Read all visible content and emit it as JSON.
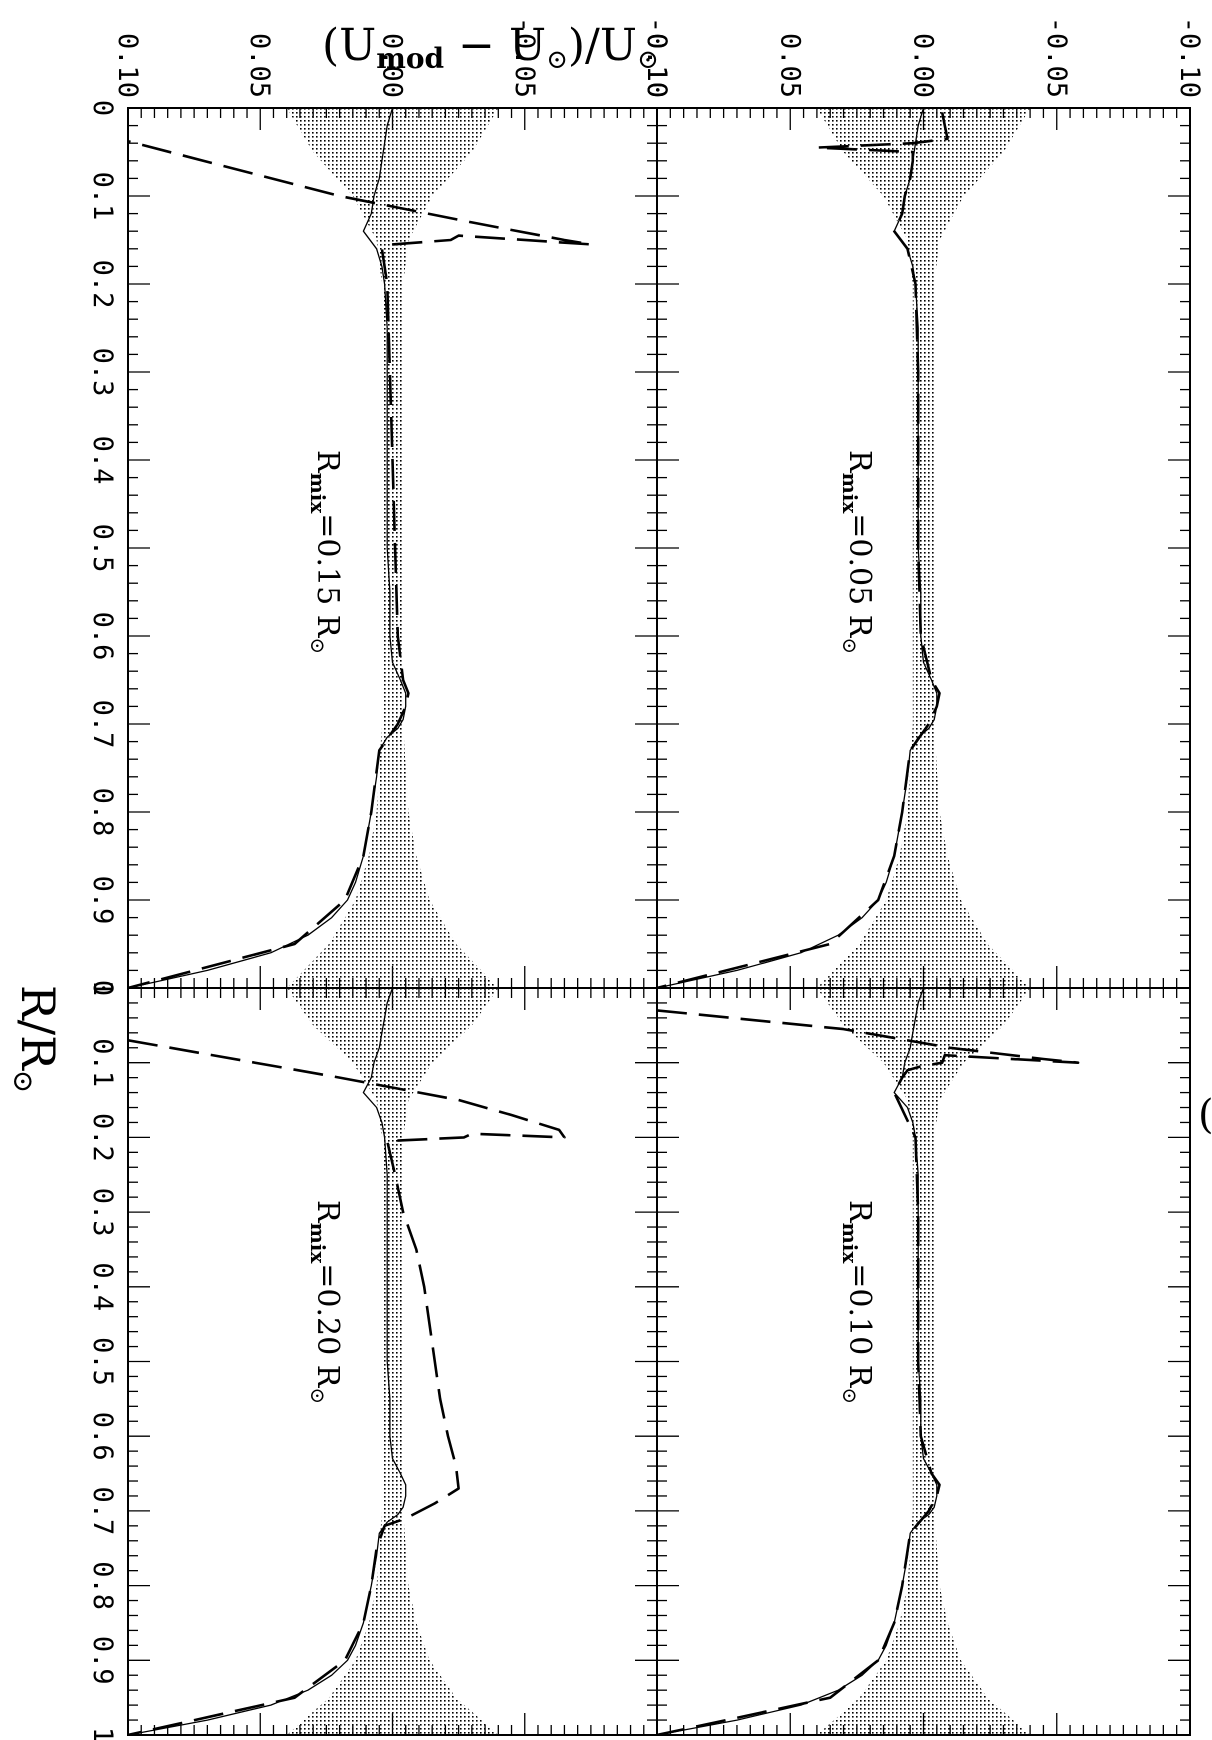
{
  "figure": {
    "y_title": {
      "open": "(U",
      "sub1": "mod",
      "mid": " − U",
      "sun1": "⊙",
      "close": ")/U",
      "sun2": "⊙"
    },
    "x_title": {
      "main": "R/R",
      "sun": "⊙"
    }
  },
  "chart_data": [
    {
      "type": "line",
      "panel_label": {
        "prefix": "R",
        "sub": "mix",
        "value": "=0.05 R",
        "sun": "⊙"
      },
      "xlim": [
        0,
        1
      ],
      "ylim": [
        -0.1,
        0.1
      ],
      "x_ticks": [
        "0",
        "0.1",
        "0.2",
        "0.3",
        "0.4",
        "0.5",
        "0.6",
        "0.7",
        "0.8",
        "0.9",
        "1"
      ],
      "y_ticks": [
        "-0.10",
        "-0.05",
        "0.00",
        "0.05",
        "0.10"
      ],
      "band": {
        "x": [
          0.0,
          0.05,
          0.1,
          0.15,
          0.2,
          0.25,
          0.3,
          0.4,
          0.5,
          0.6,
          0.65,
          0.7,
          0.75,
          0.8,
          0.85,
          0.9,
          0.95,
          1.0
        ],
        "half": [
          0.04,
          0.03,
          0.015,
          0.006,
          0.004,
          0.004,
          0.004,
          0.004,
          0.004,
          0.004,
          0.004,
          0.004,
          0.005,
          0.006,
          0.009,
          0.014,
          0.024,
          0.04
        ]
      },
      "series": [
        {
          "style": "solid",
          "x": [
            0.0,
            0.02,
            0.04,
            0.06,
            0.08,
            0.1,
            0.12,
            0.14,
            0.16,
            0.18,
            0.2,
            0.25,
            0.3,
            0.35,
            0.4,
            0.45,
            0.5,
            0.55,
            0.6,
            0.63,
            0.65,
            0.665,
            0.68,
            0.695,
            0.705,
            0.715,
            0.73,
            0.76,
            0.8,
            0.85,
            0.88,
            0.9,
            0.92,
            0.94,
            0.96,
            0.98,
            1.0
          ],
          "y": [
            0.0,
            0.002,
            0.003,
            0.004,
            0.005,
            0.007,
            0.008,
            0.011,
            0.006,
            0.004,
            0.003,
            0.002,
            0.002,
            0.002,
            0.002,
            0.002,
            0.002,
            0.001,
            0.001,
            0.0,
            -0.003,
            -0.005,
            -0.005,
            -0.004,
            -0.002,
            0.002,
            0.005,
            0.006,
            0.008,
            0.011,
            0.014,
            0.017,
            0.023,
            0.032,
            0.046,
            0.07,
            0.1
          ]
        },
        {
          "style": "dashed",
          "x": [
            0.005,
            0.02,
            0.035,
            0.04,
            0.045,
            0.05,
            0.06,
            0.08,
            0.1,
            0.12,
            0.14,
            0.16,
            0.2,
            0.3,
            0.4,
            0.5,
            0.6,
            0.65,
            0.665,
            0.68,
            0.7,
            0.73,
            0.8,
            0.85,
            0.9,
            0.95,
            1.0
          ],
          "y": [
            -0.007,
            -0.008,
            -0.009,
            0.004,
            0.04,
            0.004,
            0.004,
            0.005,
            0.007,
            0.008,
            0.011,
            0.006,
            0.003,
            0.002,
            0.002,
            0.002,
            0.001,
            -0.003,
            -0.006,
            -0.005,
            -0.002,
            0.005,
            0.008,
            0.011,
            0.017,
            0.035,
            0.1
          ]
        }
      ]
    },
    {
      "type": "line",
      "panel_label": {
        "prefix": "R",
        "sub": "mix",
        "value": "=0.10 R",
        "sun": "⊙"
      },
      "xlim": [
        0,
        1
      ],
      "ylim": [
        -0.1,
        0.1
      ],
      "x_ticks": [
        "0",
        "0.1",
        "0.2",
        "0.3",
        "0.4",
        "0.5",
        "0.6",
        "0.7",
        "0.8",
        "0.9",
        "1"
      ],
      "y_ticks": [
        "-0.10",
        "-0.05",
        "0.00",
        "0.05",
        "0.10"
      ],
      "band": {
        "x": [
          0.0,
          0.05,
          0.1,
          0.15,
          0.2,
          0.25,
          0.3,
          0.4,
          0.5,
          0.6,
          0.65,
          0.7,
          0.75,
          0.8,
          0.85,
          0.9,
          0.95,
          1.0
        ],
        "half": [
          0.04,
          0.03,
          0.015,
          0.006,
          0.004,
          0.004,
          0.004,
          0.004,
          0.004,
          0.004,
          0.004,
          0.004,
          0.005,
          0.006,
          0.009,
          0.014,
          0.024,
          0.04
        ]
      },
      "series": [
        {
          "style": "solid",
          "x": [
            0.0,
            0.02,
            0.04,
            0.06,
            0.08,
            0.1,
            0.12,
            0.14,
            0.16,
            0.18,
            0.2,
            0.25,
            0.3,
            0.35,
            0.4,
            0.45,
            0.5,
            0.55,
            0.6,
            0.63,
            0.65,
            0.665,
            0.68,
            0.695,
            0.705,
            0.715,
            0.73,
            0.76,
            0.8,
            0.85,
            0.88,
            0.9,
            0.92,
            0.94,
            0.96,
            0.98,
            1.0
          ],
          "y": [
            0.0,
            0.002,
            0.003,
            0.004,
            0.005,
            0.007,
            0.008,
            0.011,
            0.006,
            0.004,
            0.003,
            0.002,
            0.002,
            0.002,
            0.002,
            0.002,
            0.002,
            0.001,
            0.001,
            0.0,
            -0.003,
            -0.005,
            -0.005,
            -0.004,
            -0.002,
            0.002,
            0.005,
            0.006,
            0.008,
            0.011,
            0.014,
            0.017,
            0.023,
            0.032,
            0.046,
            0.07,
            0.1
          ]
        },
        {
          "style": "dashed",
          "x": [
            0.03,
            0.055,
            0.08,
            0.095,
            0.1,
            0.09,
            0.1,
            0.105,
            0.11,
            0.12,
            0.14,
            0.2,
            0.3,
            0.4,
            0.5,
            0.6,
            0.65,
            0.665,
            0.68,
            0.7,
            0.73,
            0.8,
            0.85,
            0.9,
            0.95,
            1.0
          ],
          "y": [
            0.1,
            0.03,
            -0.01,
            -0.045,
            -0.058,
            -0.008,
            -0.007,
            0.001,
            0.006,
            0.008,
            0.011,
            0.003,
            0.002,
            0.002,
            0.002,
            0.001,
            -0.003,
            -0.006,
            -0.005,
            -0.002,
            0.005,
            0.008,
            0.011,
            0.017,
            0.035,
            0.1
          ]
        }
      ]
    },
    {
      "type": "line",
      "panel_label": {
        "prefix": "R",
        "sub": "mix",
        "value": "=0.15 R",
        "sun": "⊙"
      },
      "xlim": [
        0,
        1
      ],
      "ylim": [
        -0.1,
        0.1
      ],
      "x_ticks": [
        "0",
        "0.1",
        "0.2",
        "0.3",
        "0.4",
        "0.5",
        "0.6",
        "0.7",
        "0.8",
        "0.9",
        "1"
      ],
      "y_ticks": [
        "-0.10",
        "-0.05",
        "0.00",
        "0.05",
        "0.10"
      ],
      "band": {
        "x": [
          0.0,
          0.05,
          0.1,
          0.15,
          0.2,
          0.25,
          0.3,
          0.4,
          0.5,
          0.6,
          0.65,
          0.7,
          0.75,
          0.8,
          0.85,
          0.9,
          0.95,
          1.0
        ],
        "half": [
          0.04,
          0.03,
          0.015,
          0.006,
          0.004,
          0.004,
          0.004,
          0.004,
          0.004,
          0.004,
          0.004,
          0.004,
          0.005,
          0.006,
          0.009,
          0.014,
          0.024,
          0.04
        ]
      },
      "series": [
        {
          "style": "solid",
          "x": [
            0.0,
            0.02,
            0.04,
            0.06,
            0.08,
            0.1,
            0.12,
            0.14,
            0.16,
            0.18,
            0.2,
            0.25,
            0.3,
            0.35,
            0.4,
            0.45,
            0.5,
            0.55,
            0.6,
            0.63,
            0.65,
            0.665,
            0.68,
            0.695,
            0.705,
            0.715,
            0.73,
            0.76,
            0.8,
            0.85,
            0.88,
            0.9,
            0.92,
            0.94,
            0.96,
            0.98,
            1.0
          ],
          "y": [
            0.0,
            0.002,
            0.003,
            0.004,
            0.005,
            0.007,
            0.008,
            0.011,
            0.006,
            0.004,
            0.003,
            0.002,
            0.002,
            0.002,
            0.002,
            0.002,
            0.002,
            0.001,
            0.001,
            0.0,
            -0.003,
            -0.005,
            -0.005,
            -0.004,
            -0.002,
            0.002,
            0.005,
            0.006,
            0.008,
            0.011,
            0.014,
            0.017,
            0.023,
            0.032,
            0.046,
            0.07,
            0.1
          ]
        },
        {
          "style": "dashed",
          "x": [
            0.03,
            0.1,
            0.13,
            0.15,
            0.155,
            0.145,
            0.15,
            0.155,
            0.16,
            0.2,
            0.3,
            0.4,
            0.5,
            0.6,
            0.65,
            0.665,
            0.68,
            0.7,
            0.73,
            0.8,
            0.85,
            0.9,
            0.95,
            1.0
          ],
          "y": [
            0.11,
            0.02,
            -0.03,
            -0.065,
            -0.075,
            -0.025,
            -0.022,
            0.0,
            0.004,
            0.002,
            0.001,
            0.0,
            -0.001,
            -0.002,
            -0.004,
            -0.006,
            -0.005,
            -0.002,
            0.005,
            0.008,
            0.011,
            0.018,
            0.037,
            0.1
          ]
        }
      ]
    },
    {
      "type": "line",
      "panel_label": {
        "prefix": "R",
        "sub": "mix",
        "value": "=0.20 R",
        "sun": "⊙"
      },
      "xlim": [
        0,
        1
      ],
      "ylim": [
        -0.1,
        0.1
      ],
      "x_ticks": [
        "0",
        "0.1",
        "0.2",
        "0.3",
        "0.4",
        "0.5",
        "0.6",
        "0.7",
        "0.8",
        "0.9",
        "1"
      ],
      "y_ticks": [
        "-0.10",
        "-0.05",
        "0.00",
        "0.05",
        "0.10"
      ],
      "band": {
        "x": [
          0.0,
          0.05,
          0.1,
          0.15,
          0.2,
          0.25,
          0.3,
          0.4,
          0.5,
          0.6,
          0.65,
          0.7,
          0.75,
          0.8,
          0.85,
          0.9,
          0.95,
          1.0
        ],
        "half": [
          0.04,
          0.03,
          0.015,
          0.006,
          0.004,
          0.004,
          0.004,
          0.004,
          0.004,
          0.004,
          0.004,
          0.004,
          0.005,
          0.006,
          0.009,
          0.014,
          0.024,
          0.04
        ]
      },
      "series": [
        {
          "style": "solid",
          "x": [
            0.0,
            0.02,
            0.04,
            0.06,
            0.08,
            0.1,
            0.12,
            0.14,
            0.16,
            0.18,
            0.2,
            0.25,
            0.3,
            0.35,
            0.4,
            0.45,
            0.5,
            0.55,
            0.6,
            0.63,
            0.65,
            0.665,
            0.68,
            0.695,
            0.705,
            0.715,
            0.73,
            0.76,
            0.8,
            0.85,
            0.88,
            0.9,
            0.92,
            0.94,
            0.96,
            0.98,
            1.0
          ],
          "y": [
            0.0,
            0.002,
            0.003,
            0.004,
            0.005,
            0.007,
            0.008,
            0.011,
            0.006,
            0.004,
            0.003,
            0.002,
            0.002,
            0.002,
            0.002,
            0.002,
            0.002,
            0.001,
            0.001,
            0.0,
            -0.003,
            -0.005,
            -0.005,
            -0.004,
            -0.002,
            0.002,
            0.005,
            0.006,
            0.008,
            0.011,
            0.014,
            0.017,
            0.023,
            0.032,
            0.046,
            0.07,
            0.1
          ]
        },
        {
          "style": "dashed",
          "x": [
            0.07,
            0.12,
            0.15,
            0.17,
            0.19,
            0.2,
            0.195,
            0.2,
            0.205,
            0.25,
            0.3,
            0.35,
            0.4,
            0.45,
            0.5,
            0.55,
            0.6,
            0.64,
            0.67,
            0.69,
            0.71,
            0.72,
            0.75,
            0.8,
            0.85,
            0.9,
            0.95,
            1.0
          ],
          "y": [
            0.1,
            0.02,
            -0.025,
            -0.045,
            -0.063,
            -0.065,
            -0.03,
            -0.027,
            0.002,
            -0.001,
            -0.004,
            -0.009,
            -0.012,
            -0.014,
            -0.016,
            -0.018,
            -0.021,
            -0.024,
            -0.025,
            -0.016,
            -0.005,
            0.003,
            0.006,
            0.008,
            0.011,
            0.018,
            0.037,
            0.1
          ]
        }
      ]
    }
  ]
}
